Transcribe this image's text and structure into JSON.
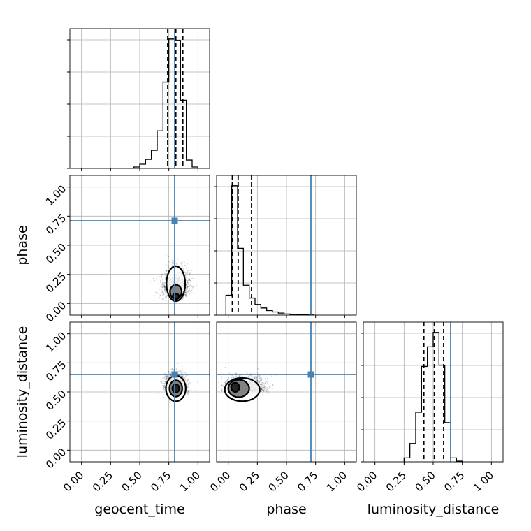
{
  "chart_data": {
    "type": "corner",
    "parameters": [
      "geocent_time",
      "phase",
      "luminosity_distance"
    ],
    "truths": {
      "geocent_time": 0.8,
      "phase": 0.71,
      "luminosity_distance": 0.65
    },
    "axis_range": [
      -0.1,
      1.1
    ],
    "ticks": [
      0.0,
      0.25,
      0.5,
      0.75,
      1.0
    ],
    "tick_labels": [
      "0.00",
      "0.25",
      "0.50",
      "0.75",
      "1.00"
    ],
    "grid": true,
    "histograms": {
      "geocent_time": {
        "bin_width": 0.05,
        "bin_starts": [
          0.4,
          0.45,
          0.5,
          0.55,
          0.6,
          0.65,
          0.7,
          0.75,
          0.8,
          0.85,
          0.9,
          0.95
        ],
        "counts": [
          0.002,
          0.01,
          0.03,
          0.065,
          0.13,
          0.27,
          0.62,
          0.93,
          0.92,
          0.49,
          0.06,
          0.01
        ],
        "quantiles": [
          0.74,
          0.81,
          0.87
        ]
      },
      "phase": {
        "bin_width": 0.05,
        "bin_starts": [
          -0.02,
          0.03,
          0.08,
          0.13,
          0.18,
          0.23,
          0.28,
          0.33,
          0.38,
          0.43,
          0.48,
          0.53,
          0.58,
          0.63,
          0.68
        ],
        "counts": [
          0.14,
          0.91,
          0.47,
          0.21,
          0.12,
          0.075,
          0.05,
          0.032,
          0.022,
          0.014,
          0.008,
          0.005,
          0.003,
          0.002,
          0.001
        ],
        "quantiles": [
          0.035,
          0.085,
          0.2
        ]
      },
      "luminosity_distance": {
        "bin_width": 0.05,
        "bin_starts": [
          0.25,
          0.3,
          0.35,
          0.4,
          0.45,
          0.5,
          0.55,
          0.6,
          0.65,
          0.7
        ],
        "counts": [
          0.03,
          0.14,
          0.38,
          0.73,
          0.88,
          0.99,
          0.74,
          0.3,
          0.03,
          0.005
        ],
        "quantiles": [
          0.42,
          0.51,
          0.59
        ]
      }
    },
    "contours": {
      "phase|geocent_time": {
        "levels": [
          {
            "center": [
              0.81,
              0.06
            ],
            "rx": 0.028,
            "ry": 0.025
          },
          {
            "center": [
              0.81,
              0.1
            ],
            "rx": 0.05,
            "ry": 0.06
          },
          {
            "center": [
              0.81,
              0.17
            ],
            "rx": 0.08,
            "ry": 0.15
          }
        ],
        "scatter_center": [
          0.81,
          0.12
        ],
        "scatter_spread": [
          0.1,
          0.14
        ]
      },
      "luminosity_distance|geocent_time": {
        "levels": [
          {
            "center": [
              0.81,
              0.53
            ],
            "rx": 0.03,
            "ry": 0.035
          },
          {
            "center": [
              0.81,
              0.53
            ],
            "rx": 0.055,
            "ry": 0.07
          },
          {
            "center": [
              0.81,
              0.53
            ],
            "rx": 0.085,
            "ry": 0.11
          }
        ],
        "scatter_center": [
          0.81,
          0.53
        ],
        "scatter_spread": [
          0.08,
          0.1
        ]
      },
      "luminosity_distance|phase": {
        "levels": [
          {
            "center": [
              0.06,
              0.54
            ],
            "rx": 0.035,
            "ry": 0.04
          },
          {
            "center": [
              0.09,
              0.53
            ],
            "rx": 0.09,
            "ry": 0.075
          },
          {
            "center": [
              0.12,
              0.52
            ],
            "rx": 0.15,
            "ry": 0.1
          }
        ],
        "scatter_center": [
          0.14,
          0.52
        ],
        "scatter_spread": [
          0.15,
          0.09
        ]
      }
    }
  }
}
